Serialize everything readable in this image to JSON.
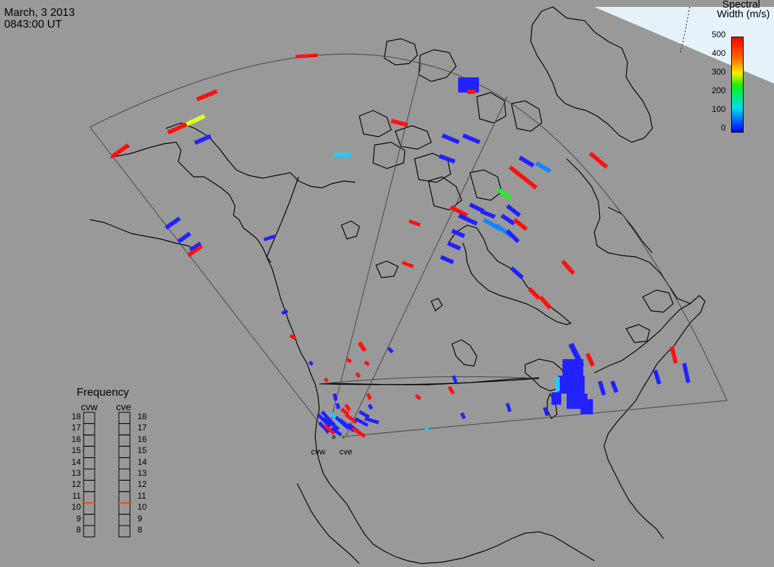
{
  "header": {
    "date": "March, 3 2013",
    "time": "0843:00 UT"
  },
  "colorbar": {
    "title_line1": "Spectral",
    "title_line2": "Width (m/s)",
    "ticks": [
      "500",
      "400",
      "300",
      "200",
      "100",
      "0"
    ],
    "range": [
      0,
      500
    ],
    "colors": [
      "#0000ff",
      "#00ccff",
      "#00ee44",
      "#ffff00",
      "#ff8800",
      "#ff0000"
    ]
  },
  "frequency": {
    "title": "Frequency",
    "radars": [
      {
        "name": "cvw",
        "value": 10.5
      },
      {
        "name": "cve",
        "value": 10.5
      }
    ],
    "scale": [
      "18",
      "17",
      "16",
      "15",
      "14",
      "13",
      "12",
      "11",
      "10",
      "9",
      "8"
    ],
    "marker_color": "#ff4400"
  },
  "sites": {
    "west": "cvw",
    "east": "cve"
  }
}
